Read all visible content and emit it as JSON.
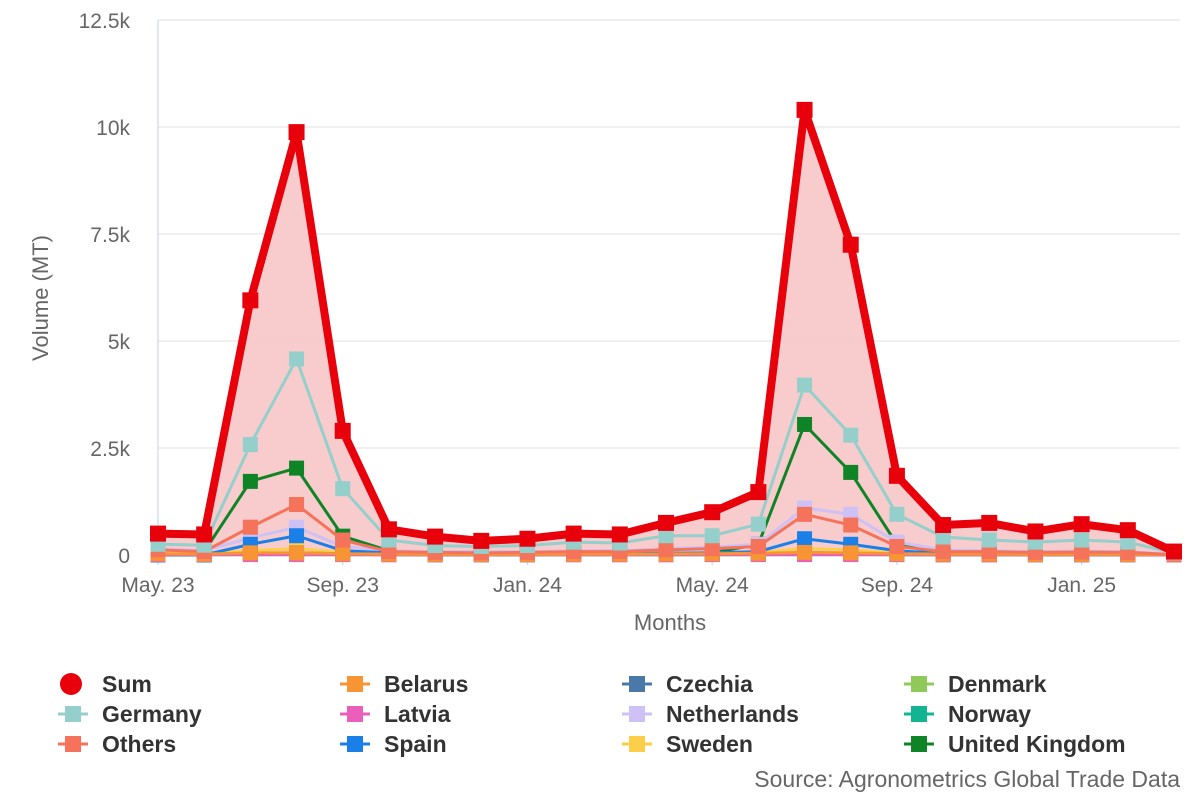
{
  "chart_data": {
    "type": "line",
    "ylabel": "Volume (MT)",
    "xlabel": "Months",
    "ylim": [
      0,
      12500
    ],
    "yticks": [
      {
        "value": 0,
        "label": "0"
      },
      {
        "value": 2500,
        "label": "2.5k"
      },
      {
        "value": 5000,
        "label": "5k"
      },
      {
        "value": 7500,
        "label": "7.5k"
      },
      {
        "value": 10000,
        "label": "10k"
      },
      {
        "value": 12500,
        "label": "12.5k"
      }
    ],
    "xticks": [
      {
        "index": 0,
        "label": "May. 23"
      },
      {
        "index": 4,
        "label": "Sep. 23"
      },
      {
        "index": 8,
        "label": "Jan. 24"
      },
      {
        "index": 12,
        "label": "May. 24"
      },
      {
        "index": 16,
        "label": "Sep. 24"
      },
      {
        "index": 20,
        "label": "Jan. 25"
      }
    ],
    "grid": true,
    "legend_position": "bottom",
    "source": "Source: Agronometrics Global Trade Data",
    "categories": [
      "May. 23",
      "Jun. 23",
      "Jul. 23",
      "Aug. 23",
      "Sep. 23",
      "Oct. 23",
      "Nov. 23",
      "Dec. 23",
      "Jan. 24",
      "Feb. 24",
      "Mar. 24",
      "Apr. 24",
      "May. 24",
      "Jun. 24",
      "Jul. 24",
      "Aug. 24",
      "Sep. 24",
      "Oct. 24",
      "Nov. 24",
      "Dec. 24",
      "Jan. 25",
      "Feb. 25",
      "Mar. 25"
    ],
    "series": [
      {
        "name": "Sum",
        "color": "#e8000b",
        "marker": "circle",
        "area": true,
        "values": [
          500,
          480,
          5950,
          9880,
          2900,
          600,
          430,
          330,
          380,
          500,
          480,
          750,
          1000,
          1470,
          10400,
          7250,
          1850,
          700,
          750,
          550,
          720,
          580,
          80
        ]
      },
      {
        "name": "Germany",
        "color": "#94cfcb",
        "marker": "square",
        "values": [
          250,
          230,
          2580,
          4580,
          1550,
          350,
          220,
          200,
          220,
          300,
          280,
          450,
          450,
          720,
          3970,
          2800,
          950,
          420,
          350,
          300,
          350,
          300,
          50
        ]
      },
      {
        "name": "Others",
        "color": "#f4735a",
        "marker": "square",
        "values": [
          120,
          80,
          650,
          1180,
          350,
          80,
          60,
          50,
          60,
          80,
          80,
          120,
          150,
          200,
          950,
          700,
          200,
          80,
          80,
          60,
          70,
          60,
          10
        ]
      },
      {
        "name": "Belarus",
        "color": "#f79433",
        "marker": "square",
        "values": [
          30,
          20,
          50,
          50,
          30,
          20,
          15,
          15,
          15,
          20,
          20,
          25,
          30,
          40,
          60,
          50,
          30,
          20,
          20,
          15,
          15,
          15,
          5
        ]
      },
      {
        "name": "Latvia",
        "color": "#ea5fba",
        "marker": "square",
        "values": [
          10,
          10,
          10,
          10,
          10,
          5,
          5,
          5,
          5,
          5,
          5,
          5,
          10,
          10,
          10,
          10,
          10,
          5,
          5,
          5,
          5,
          5,
          0
        ]
      },
      {
        "name": "Spain",
        "color": "#1b7fe8",
        "marker": "square",
        "values": [
          0,
          0,
          250,
          450,
          100,
          50,
          30,
          20,
          20,
          30,
          30,
          40,
          50,
          80,
          380,
          250,
          100,
          30,
          20,
          20,
          20,
          20,
          0
        ]
      },
      {
        "name": "Czechia",
        "color": "#4a78a8",
        "marker": "square",
        "values": [
          20,
          15,
          40,
          50,
          30,
          15,
          10,
          10,
          10,
          15,
          15,
          20,
          25,
          30,
          40,
          30,
          20,
          15,
          15,
          10,
          10,
          10,
          5
        ]
      },
      {
        "name": "Netherlands",
        "color": "#cdc1f5",
        "marker": "square",
        "values": [
          150,
          100,
          400,
          650,
          200,
          100,
          80,
          80,
          80,
          100,
          100,
          150,
          180,
          250,
          1100,
          950,
          300,
          120,
          100,
          80,
          90,
          80,
          20
        ]
      },
      {
        "name": "Sweden",
        "color": "#fbcf4a",
        "marker": "square",
        "values": [
          50,
          40,
          100,
          150,
          60,
          30,
          20,
          20,
          20,
          30,
          30,
          40,
          50,
          60,
          150,
          120,
          40,
          20,
          20,
          20,
          20,
          20,
          5
        ]
      },
      {
        "name": "Denmark",
        "color": "#8fc95a",
        "marker": "square",
        "values": [
          20,
          15,
          30,
          40,
          25,
          15,
          10,
          10,
          10,
          15,
          15,
          20,
          20,
          25,
          40,
          30,
          20,
          10,
          10,
          10,
          10,
          10,
          5
        ]
      },
      {
        "name": "Norway",
        "color": "#13b491",
        "marker": "square",
        "values": [
          10,
          10,
          20,
          30,
          15,
          10,
          5,
          5,
          5,
          10,
          10,
          10,
          10,
          15,
          30,
          25,
          10,
          5,
          5,
          5,
          5,
          5,
          0
        ]
      },
      {
        "name": "United Kingdom",
        "color": "#0f8427",
        "marker": "square",
        "values": [
          20,
          80,
          1720,
          2030,
          440,
          100,
          30,
          20,
          20,
          30,
          30,
          40,
          50,
          250,
          3050,
          1930,
          250,
          20,
          30,
          30,
          30,
          20,
          0
        ]
      }
    ]
  },
  "legend": [
    {
      "key": "sum",
      "label": "Sum",
      "color": "#e8000b",
      "marker": "circle"
    },
    {
      "key": "belarus",
      "label": "Belarus",
      "color": "#f79433",
      "marker": "square"
    },
    {
      "key": "czechia",
      "label": "Czechia",
      "color": "#4a78a8",
      "marker": "square"
    },
    {
      "key": "denmark",
      "label": "Denmark",
      "color": "#8fc95a",
      "marker": "square"
    },
    {
      "key": "germany",
      "label": "Germany",
      "color": "#94cfcb",
      "marker": "square"
    },
    {
      "key": "latvia",
      "label": "Latvia",
      "color": "#ea5fba",
      "marker": "square"
    },
    {
      "key": "netherlands",
      "label": "Netherlands",
      "color": "#cdc1f5",
      "marker": "square"
    },
    {
      "key": "norway",
      "label": "Norway",
      "color": "#13b491",
      "marker": "square"
    },
    {
      "key": "others",
      "label": "Others",
      "color": "#f4735a",
      "marker": "square"
    },
    {
      "key": "spain",
      "label": "Spain",
      "color": "#1b7fe8",
      "marker": "square"
    },
    {
      "key": "sweden",
      "label": "Sweden",
      "color": "#fbcf4a",
      "marker": "square"
    },
    {
      "key": "united-kingdom",
      "label": "United Kingdom",
      "color": "#0f8427",
      "marker": "square"
    }
  ]
}
